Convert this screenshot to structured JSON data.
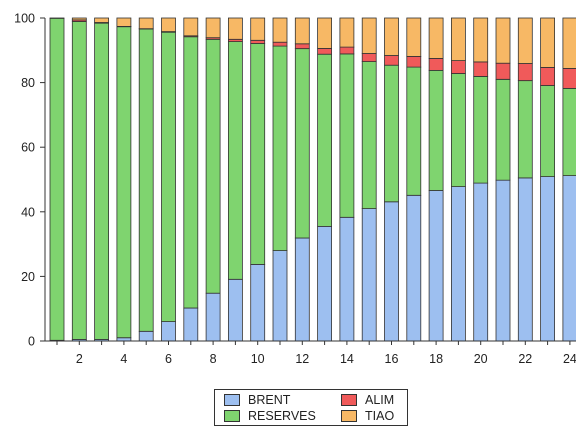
{
  "chart_data": {
    "type": "bar",
    "stacked": true,
    "categories": [
      "1",
      "2",
      "3",
      "4",
      "5",
      "6",
      "7",
      "8",
      "9",
      "10",
      "11",
      "12",
      "13",
      "14",
      "15",
      "16",
      "17",
      "18",
      "19",
      "20",
      "21",
      "22",
      "23",
      "24"
    ],
    "x_tick_labels": [
      "2",
      "4",
      "6",
      "8",
      "10",
      "12",
      "14",
      "16",
      "18",
      "20",
      "22",
      "24"
    ],
    "y_tick_labels": [
      "0",
      "20",
      "40",
      "60",
      "80",
      "100"
    ],
    "ylim": [
      0,
      100
    ],
    "grid": false,
    "legend_position": "bottom",
    "series": [
      {
        "name": "BRENT",
        "color": "#9dbff0",
        "values": [
          0.2,
          0.5,
          0.5,
          1.0,
          3.0,
          6.0,
          10.2,
          14.8,
          19.1,
          23.7,
          28.0,
          31.9,
          35.5,
          38.3,
          41.0,
          43.1,
          45.1,
          46.6,
          47.8,
          48.9,
          49.8,
          50.5,
          50.9,
          51.2
        ]
      },
      {
        "name": "RESERVES",
        "color": "#7fd46f",
        "values": [
          99.7,
          98.4,
          97.9,
          96.3,
          93.6,
          89.6,
          84.0,
          78.6,
          73.6,
          68.4,
          63.3,
          58.6,
          53.3,
          50.6,
          45.5,
          42.3,
          39.7,
          37.2,
          35.0,
          33.0,
          31.2,
          30.1,
          28.2,
          27.0
        ]
      },
      {
        "name": "ALIM",
        "color": "#f05a5a",
        "values": [
          0.0,
          0.5,
          0.2,
          0.1,
          0.1,
          0.2,
          0.3,
          0.5,
          0.7,
          1.0,
          1.2,
          1.5,
          1.8,
          2.1,
          2.5,
          3.0,
          3.3,
          3.7,
          4.0,
          4.5,
          5.0,
          5.3,
          5.6,
          6.2
        ]
      },
      {
        "name": "TIAO",
        "color": "#f7b865",
        "values": [
          0.1,
          0.6,
          1.4,
          2.6,
          3.3,
          4.2,
          5.5,
          6.1,
          6.6,
          6.9,
          7.5,
          8.0,
          9.4,
          9.0,
          11.0,
          11.6,
          11.9,
          12.5,
          13.2,
          13.6,
          14.0,
          14.1,
          15.3,
          15.6
        ]
      }
    ]
  }
}
